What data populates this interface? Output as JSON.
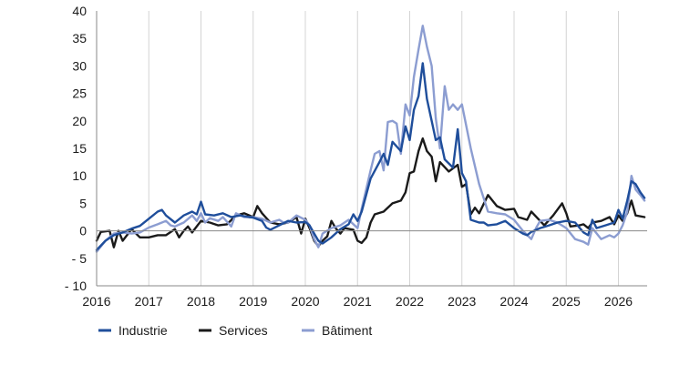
{
  "chart_data": {
    "type": "line",
    "title": "",
    "xlabel": "",
    "ylabel": "",
    "ylim": [
      -10,
      40
    ],
    "xlim": [
      2016,
      2026.55
    ],
    "y_ticks": [
      -10,
      -5,
      0,
      5,
      10,
      15,
      20,
      25,
      30,
      35,
      40
    ],
    "y_tick_labels": [
      "- 10",
      "- 5",
      "0",
      "5",
      "10",
      "15",
      "20",
      "25",
      "30",
      "35",
      "40"
    ],
    "x_ticks": [
      2016,
      2017,
      2018,
      2019,
      2020,
      2021,
      2022,
      2023,
      2024,
      2025,
      2026
    ],
    "x_tick_labels": [
      "2016",
      "2017",
      "2018",
      "2019",
      "2020",
      "2021",
      "2022",
      "2023",
      "2024",
      "2025",
      "2026"
    ],
    "grid": "vertical",
    "legend_position": "bottom",
    "series": [
      {
        "name": "Industrie",
        "color": "#1f4e9b",
        "points": [
          [
            2016.0,
            -3.5
          ],
          [
            2016.17,
            -1.8
          ],
          [
            2016.33,
            -0.8
          ],
          [
            2016.5,
            -0.3
          ],
          [
            2016.67,
            0.4
          ],
          [
            2016.83,
            0.9
          ],
          [
            2017.0,
            2.2
          ],
          [
            2017.17,
            3.5
          ],
          [
            2017.25,
            3.8
          ],
          [
            2017.33,
            2.8
          ],
          [
            2017.5,
            1.5
          ],
          [
            2017.67,
            2.8
          ],
          [
            2017.83,
            3.5
          ],
          [
            2017.92,
            3.0
          ],
          [
            2018.0,
            5.3
          ],
          [
            2018.08,
            3.0
          ],
          [
            2018.25,
            2.8
          ],
          [
            2018.42,
            3.2
          ],
          [
            2018.58,
            2.5
          ],
          [
            2018.75,
            2.8
          ],
          [
            2018.92,
            2.5
          ],
          [
            2019.0,
            2.4
          ],
          [
            2019.17,
            1.8
          ],
          [
            2019.25,
            0.6
          ],
          [
            2019.33,
            0.2
          ],
          [
            2019.5,
            1.0
          ],
          [
            2019.67,
            1.8
          ],
          [
            2019.83,
            1.5
          ],
          [
            2020.0,
            1.6
          ],
          [
            2020.08,
            1.0
          ],
          [
            2020.17,
            -0.5
          ],
          [
            2020.25,
            -1.8
          ],
          [
            2020.33,
            -2.3
          ],
          [
            2020.5,
            -1.2
          ],
          [
            2020.67,
            0.3
          ],
          [
            2020.83,
            1.2
          ],
          [
            2020.92,
            3.0
          ],
          [
            2021.0,
            1.8
          ],
          [
            2021.08,
            3.5
          ],
          [
            2021.25,
            9.5
          ],
          [
            2021.42,
            12.5
          ],
          [
            2021.5,
            14.0
          ],
          [
            2021.58,
            12.0
          ],
          [
            2021.67,
            16.2
          ],
          [
            2021.83,
            14.5
          ],
          [
            2021.92,
            19.0
          ],
          [
            2022.0,
            16.5
          ],
          [
            2022.08,
            22.0
          ],
          [
            2022.17,
            24.5
          ],
          [
            2022.25,
            30.5
          ],
          [
            2022.33,
            24.0
          ],
          [
            2022.42,
            20.0
          ],
          [
            2022.5,
            16.5
          ],
          [
            2022.58,
            17.0
          ],
          [
            2022.67,
            13.0
          ],
          [
            2022.83,
            11.5
          ],
          [
            2022.92,
            18.5
          ],
          [
            2023.0,
            10.5
          ],
          [
            2023.08,
            9.0
          ],
          [
            2023.17,
            2.0
          ],
          [
            2023.33,
            1.5
          ],
          [
            2023.42,
            1.5
          ],
          [
            2023.5,
            1.0
          ],
          [
            2023.67,
            1.2
          ],
          [
            2023.83,
            1.8
          ],
          [
            2024.0,
            0.5
          ],
          [
            2024.17,
            -0.5
          ],
          [
            2024.25,
            -0.8
          ],
          [
            2024.33,
            -0.2
          ],
          [
            2024.5,
            0.5
          ],
          [
            2024.67,
            1.0
          ],
          [
            2024.83,
            1.5
          ],
          [
            2025.0,
            1.8
          ],
          [
            2025.17,
            1.5
          ],
          [
            2025.33,
            -0.3
          ],
          [
            2025.42,
            -0.8
          ],
          [
            2025.5,
            2.0
          ],
          [
            2025.58,
            0.5
          ],
          [
            2025.75,
            1.0
          ],
          [
            2025.92,
            1.5
          ],
          [
            2026.0,
            3.8
          ],
          [
            2026.08,
            2.2
          ],
          [
            2026.17,
            5.5
          ],
          [
            2026.25,
            9.0
          ],
          [
            2026.33,
            8.5
          ],
          [
            2026.42,
            7.0
          ],
          [
            2026.5,
            6.0
          ]
        ]
      },
      {
        "name": "Services",
        "color": "#1a1a1a",
        "points": [
          [
            2016.0,
            -1.8
          ],
          [
            2016.08,
            -0.2
          ],
          [
            2016.25,
            0.0
          ],
          [
            2016.33,
            -3.0
          ],
          [
            2016.42,
            0.0
          ],
          [
            2016.5,
            -1.8
          ],
          [
            2016.67,
            0.3
          ],
          [
            2016.83,
            -1.2
          ],
          [
            2017.0,
            -1.2
          ],
          [
            2017.17,
            -0.8
          ],
          [
            2017.33,
            -0.8
          ],
          [
            2017.5,
            0.3
          ],
          [
            2017.58,
            -1.2
          ],
          [
            2017.67,
            0.0
          ],
          [
            2017.75,
            0.8
          ],
          [
            2017.83,
            -0.3
          ],
          [
            2018.0,
            1.8
          ],
          [
            2018.17,
            1.5
          ],
          [
            2018.33,
            1.0
          ],
          [
            2018.5,
            1.2
          ],
          [
            2018.67,
            2.8
          ],
          [
            2018.83,
            3.2
          ],
          [
            2019.0,
            2.5
          ],
          [
            2019.08,
            4.5
          ],
          [
            2019.17,
            3.2
          ],
          [
            2019.33,
            1.5
          ],
          [
            2019.5,
            1.2
          ],
          [
            2019.67,
            1.5
          ],
          [
            2019.83,
            2.5
          ],
          [
            2019.92,
            -0.5
          ],
          [
            2020.0,
            2.2
          ],
          [
            2020.08,
            0.5
          ],
          [
            2020.17,
            -1.8
          ],
          [
            2020.25,
            -2.8
          ],
          [
            2020.33,
            -1.8
          ],
          [
            2020.42,
            -1.0
          ],
          [
            2020.5,
            1.8
          ],
          [
            2020.58,
            0.5
          ],
          [
            2020.67,
            -0.5
          ],
          [
            2020.75,
            0.5
          ],
          [
            2020.92,
            0.2
          ],
          [
            2021.0,
            -1.8
          ],
          [
            2021.08,
            -2.2
          ],
          [
            2021.17,
            -1.2
          ],
          [
            2021.25,
            1.5
          ],
          [
            2021.33,
            3.0
          ],
          [
            2021.5,
            3.5
          ],
          [
            2021.67,
            5.0
          ],
          [
            2021.83,
            5.5
          ],
          [
            2021.92,
            7.0
          ],
          [
            2022.0,
            10.5
          ],
          [
            2022.08,
            10.8
          ],
          [
            2022.17,
            14.5
          ],
          [
            2022.25,
            16.8
          ],
          [
            2022.33,
            14.5
          ],
          [
            2022.42,
            13.5
          ],
          [
            2022.5,
            9.0
          ],
          [
            2022.58,
            12.5
          ],
          [
            2022.75,
            10.8
          ],
          [
            2022.92,
            12.0
          ],
          [
            2023.0,
            8.0
          ],
          [
            2023.08,
            8.5
          ],
          [
            2023.17,
            3.0
          ],
          [
            2023.25,
            4.2
          ],
          [
            2023.33,
            3.2
          ],
          [
            2023.5,
            6.5
          ],
          [
            2023.67,
            4.5
          ],
          [
            2023.83,
            3.8
          ],
          [
            2024.0,
            4.0
          ],
          [
            2024.08,
            2.5
          ],
          [
            2024.25,
            2.0
          ],
          [
            2024.33,
            3.5
          ],
          [
            2024.5,
            1.8
          ],
          [
            2024.58,
            1.0
          ],
          [
            2024.75,
            2.8
          ],
          [
            2024.92,
            5.0
          ],
          [
            2025.0,
            3.2
          ],
          [
            2025.08,
            0.8
          ],
          [
            2025.25,
            1.0
          ],
          [
            2025.33,
            1.2
          ],
          [
            2025.42,
            0.5
          ],
          [
            2025.5,
            1.5
          ],
          [
            2025.67,
            1.8
          ],
          [
            2025.83,
            2.5
          ],
          [
            2025.92,
            1.2
          ],
          [
            2026.0,
            2.8
          ],
          [
            2026.08,
            1.8
          ],
          [
            2026.17,
            3.2
          ],
          [
            2026.25,
            5.5
          ],
          [
            2026.33,
            2.8
          ],
          [
            2026.5,
            2.5
          ]
        ]
      },
      {
        "name": "Bâtiment",
        "color": "#8c9dd1",
        "points": [
          [
            2016.0,
            -3.8
          ],
          [
            2016.17,
            -1.8
          ],
          [
            2016.33,
            -0.5
          ],
          [
            2016.5,
            -0.3
          ],
          [
            2016.67,
            -0.5
          ],
          [
            2016.83,
            -0.3
          ],
          [
            2017.0,
            0.6
          ],
          [
            2017.17,
            1.2
          ],
          [
            2017.33,
            1.8
          ],
          [
            2017.42,
            1.0
          ],
          [
            2017.5,
            0.8
          ],
          [
            2017.67,
            1.5
          ],
          [
            2017.83,
            2.8
          ],
          [
            2017.92,
            1.8
          ],
          [
            2018.0,
            3.2
          ],
          [
            2018.08,
            1.5
          ],
          [
            2018.17,
            2.3
          ],
          [
            2018.33,
            1.8
          ],
          [
            2018.42,
            2.5
          ],
          [
            2018.58,
            0.8
          ],
          [
            2018.67,
            3.2
          ],
          [
            2018.83,
            2.5
          ],
          [
            2019.0,
            2.5
          ],
          [
            2019.17,
            2.2
          ],
          [
            2019.33,
            1.5
          ],
          [
            2019.5,
            2.0
          ],
          [
            2019.58,
            1.5
          ],
          [
            2019.67,
            1.5
          ],
          [
            2019.83,
            2.8
          ],
          [
            2020.0,
            2.0
          ],
          [
            2020.08,
            1.0
          ],
          [
            2020.17,
            -1.5
          ],
          [
            2020.25,
            -3.0
          ],
          [
            2020.33,
            -0.5
          ],
          [
            2020.5,
            0.5
          ],
          [
            2020.67,
            1.0
          ],
          [
            2020.83,
            2.0
          ],
          [
            2021.0,
            0.5
          ],
          [
            2021.08,
            4.0
          ],
          [
            2021.25,
            11.0
          ],
          [
            2021.33,
            14.0
          ],
          [
            2021.42,
            14.5
          ],
          [
            2021.5,
            11.0
          ],
          [
            2021.58,
            19.8
          ],
          [
            2021.67,
            20.0
          ],
          [
            2021.75,
            19.5
          ],
          [
            2021.83,
            14.0
          ],
          [
            2021.92,
            23.0
          ],
          [
            2022.0,
            21.0
          ],
          [
            2022.08,
            28.0
          ],
          [
            2022.17,
            33.0
          ],
          [
            2022.25,
            37.3
          ],
          [
            2022.33,
            33.5
          ],
          [
            2022.42,
            30.0
          ],
          [
            2022.5,
            20.5
          ],
          [
            2022.58,
            15.0
          ],
          [
            2022.67,
            26.3
          ],
          [
            2022.75,
            22.0
          ],
          [
            2022.83,
            23.0
          ],
          [
            2022.92,
            22.0
          ],
          [
            2023.0,
            23.0
          ],
          [
            2023.17,
            15.0
          ],
          [
            2023.33,
            8.5
          ],
          [
            2023.5,
            3.5
          ],
          [
            2023.67,
            3.2
          ],
          [
            2023.83,
            3.0
          ],
          [
            2024.0,
            2.0
          ],
          [
            2024.17,
            0.0
          ],
          [
            2024.33,
            -1.5
          ],
          [
            2024.42,
            0.5
          ],
          [
            2024.5,
            1.8
          ],
          [
            2024.67,
            2.0
          ],
          [
            2024.83,
            1.5
          ],
          [
            2025.0,
            0.5
          ],
          [
            2025.17,
            -1.5
          ],
          [
            2025.33,
            -2.0
          ],
          [
            2025.42,
            -2.5
          ],
          [
            2025.5,
            0.5
          ],
          [
            2025.67,
            -1.5
          ],
          [
            2025.83,
            -0.8
          ],
          [
            2025.92,
            -1.2
          ],
          [
            2026.0,
            -0.5
          ],
          [
            2026.08,
            1.0
          ],
          [
            2026.17,
            3.5
          ],
          [
            2026.25,
            10.0
          ],
          [
            2026.33,
            7.5
          ],
          [
            2026.42,
            6.5
          ],
          [
            2026.5,
            5.5
          ]
        ]
      }
    ]
  }
}
